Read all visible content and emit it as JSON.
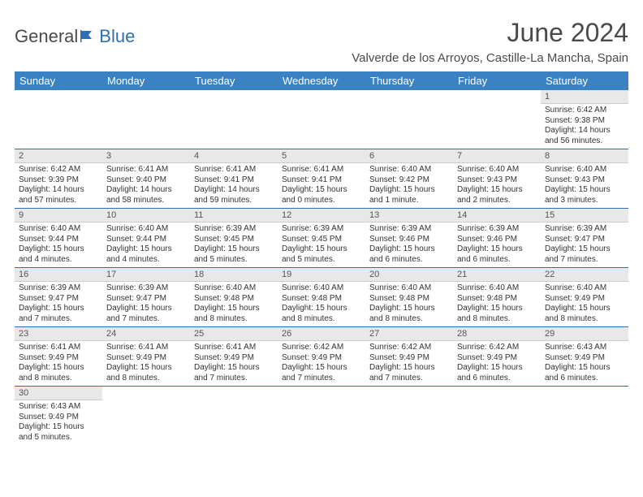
{
  "brand": {
    "part1": "General",
    "part2": "Blue"
  },
  "title": "June 2024",
  "location": "Valverde de los Arroyos, Castille-La Mancha, Spain",
  "colors": {
    "header_bg": "#3b82c4",
    "header_text": "#ffffff",
    "daynum_bg": "#e8e8e8",
    "rule": "#2d6fb5",
    "text": "#333333",
    "brand_blue": "#2d6fb5"
  },
  "fonts": {
    "title_size": 32,
    "location_size": 15,
    "dayhead_size": 13,
    "body_size": 10
  },
  "days_of_week": [
    "Sunday",
    "Monday",
    "Tuesday",
    "Wednesday",
    "Thursday",
    "Friday",
    "Saturday"
  ],
  "weeks": [
    [
      null,
      null,
      null,
      null,
      null,
      null,
      {
        "n": "1",
        "sr": "Sunrise: 6:42 AM",
        "ss": "Sunset: 9:38 PM",
        "dl": "Daylight: 14 hours and 56 minutes."
      }
    ],
    [
      {
        "n": "2",
        "sr": "Sunrise: 6:42 AM",
        "ss": "Sunset: 9:39 PM",
        "dl": "Daylight: 14 hours and 57 minutes."
      },
      {
        "n": "3",
        "sr": "Sunrise: 6:41 AM",
        "ss": "Sunset: 9:40 PM",
        "dl": "Daylight: 14 hours and 58 minutes."
      },
      {
        "n": "4",
        "sr": "Sunrise: 6:41 AM",
        "ss": "Sunset: 9:41 PM",
        "dl": "Daylight: 14 hours and 59 minutes."
      },
      {
        "n": "5",
        "sr": "Sunrise: 6:41 AM",
        "ss": "Sunset: 9:41 PM",
        "dl": "Daylight: 15 hours and 0 minutes."
      },
      {
        "n": "6",
        "sr": "Sunrise: 6:40 AM",
        "ss": "Sunset: 9:42 PM",
        "dl": "Daylight: 15 hours and 1 minute."
      },
      {
        "n": "7",
        "sr": "Sunrise: 6:40 AM",
        "ss": "Sunset: 9:43 PM",
        "dl": "Daylight: 15 hours and 2 minutes."
      },
      {
        "n": "8",
        "sr": "Sunrise: 6:40 AM",
        "ss": "Sunset: 9:43 PM",
        "dl": "Daylight: 15 hours and 3 minutes."
      }
    ],
    [
      {
        "n": "9",
        "sr": "Sunrise: 6:40 AM",
        "ss": "Sunset: 9:44 PM",
        "dl": "Daylight: 15 hours and 4 minutes."
      },
      {
        "n": "10",
        "sr": "Sunrise: 6:40 AM",
        "ss": "Sunset: 9:44 PM",
        "dl": "Daylight: 15 hours and 4 minutes."
      },
      {
        "n": "11",
        "sr": "Sunrise: 6:39 AM",
        "ss": "Sunset: 9:45 PM",
        "dl": "Daylight: 15 hours and 5 minutes."
      },
      {
        "n": "12",
        "sr": "Sunrise: 6:39 AM",
        "ss": "Sunset: 9:45 PM",
        "dl": "Daylight: 15 hours and 5 minutes."
      },
      {
        "n": "13",
        "sr": "Sunrise: 6:39 AM",
        "ss": "Sunset: 9:46 PM",
        "dl": "Daylight: 15 hours and 6 minutes."
      },
      {
        "n": "14",
        "sr": "Sunrise: 6:39 AM",
        "ss": "Sunset: 9:46 PM",
        "dl": "Daylight: 15 hours and 6 minutes."
      },
      {
        "n": "15",
        "sr": "Sunrise: 6:39 AM",
        "ss": "Sunset: 9:47 PM",
        "dl": "Daylight: 15 hours and 7 minutes."
      }
    ],
    [
      {
        "n": "16",
        "sr": "Sunrise: 6:39 AM",
        "ss": "Sunset: 9:47 PM",
        "dl": "Daylight: 15 hours and 7 minutes."
      },
      {
        "n": "17",
        "sr": "Sunrise: 6:39 AM",
        "ss": "Sunset: 9:47 PM",
        "dl": "Daylight: 15 hours and 7 minutes."
      },
      {
        "n": "18",
        "sr": "Sunrise: 6:40 AM",
        "ss": "Sunset: 9:48 PM",
        "dl": "Daylight: 15 hours and 8 minutes."
      },
      {
        "n": "19",
        "sr": "Sunrise: 6:40 AM",
        "ss": "Sunset: 9:48 PM",
        "dl": "Daylight: 15 hours and 8 minutes."
      },
      {
        "n": "20",
        "sr": "Sunrise: 6:40 AM",
        "ss": "Sunset: 9:48 PM",
        "dl": "Daylight: 15 hours and 8 minutes."
      },
      {
        "n": "21",
        "sr": "Sunrise: 6:40 AM",
        "ss": "Sunset: 9:48 PM",
        "dl": "Daylight: 15 hours and 8 minutes."
      },
      {
        "n": "22",
        "sr": "Sunrise: 6:40 AM",
        "ss": "Sunset: 9:49 PM",
        "dl": "Daylight: 15 hours and 8 minutes."
      }
    ],
    [
      {
        "n": "23",
        "sr": "Sunrise: 6:41 AM",
        "ss": "Sunset: 9:49 PM",
        "dl": "Daylight: 15 hours and 8 minutes."
      },
      {
        "n": "24",
        "sr": "Sunrise: 6:41 AM",
        "ss": "Sunset: 9:49 PM",
        "dl": "Daylight: 15 hours and 8 minutes."
      },
      {
        "n": "25",
        "sr": "Sunrise: 6:41 AM",
        "ss": "Sunset: 9:49 PM",
        "dl": "Daylight: 15 hours and 7 minutes."
      },
      {
        "n": "26",
        "sr": "Sunrise: 6:42 AM",
        "ss": "Sunset: 9:49 PM",
        "dl": "Daylight: 15 hours and 7 minutes."
      },
      {
        "n": "27",
        "sr": "Sunrise: 6:42 AM",
        "ss": "Sunset: 9:49 PM",
        "dl": "Daylight: 15 hours and 7 minutes."
      },
      {
        "n": "28",
        "sr": "Sunrise: 6:42 AM",
        "ss": "Sunset: 9:49 PM",
        "dl": "Daylight: 15 hours and 6 minutes."
      },
      {
        "n": "29",
        "sr": "Sunrise: 6:43 AM",
        "ss": "Sunset: 9:49 PM",
        "dl": "Daylight: 15 hours and 6 minutes."
      }
    ],
    [
      {
        "n": "30",
        "sr": "Sunrise: 6:43 AM",
        "ss": "Sunset: 9:49 PM",
        "dl": "Daylight: 15 hours and 5 minutes."
      },
      null,
      null,
      null,
      null,
      null,
      null
    ]
  ]
}
